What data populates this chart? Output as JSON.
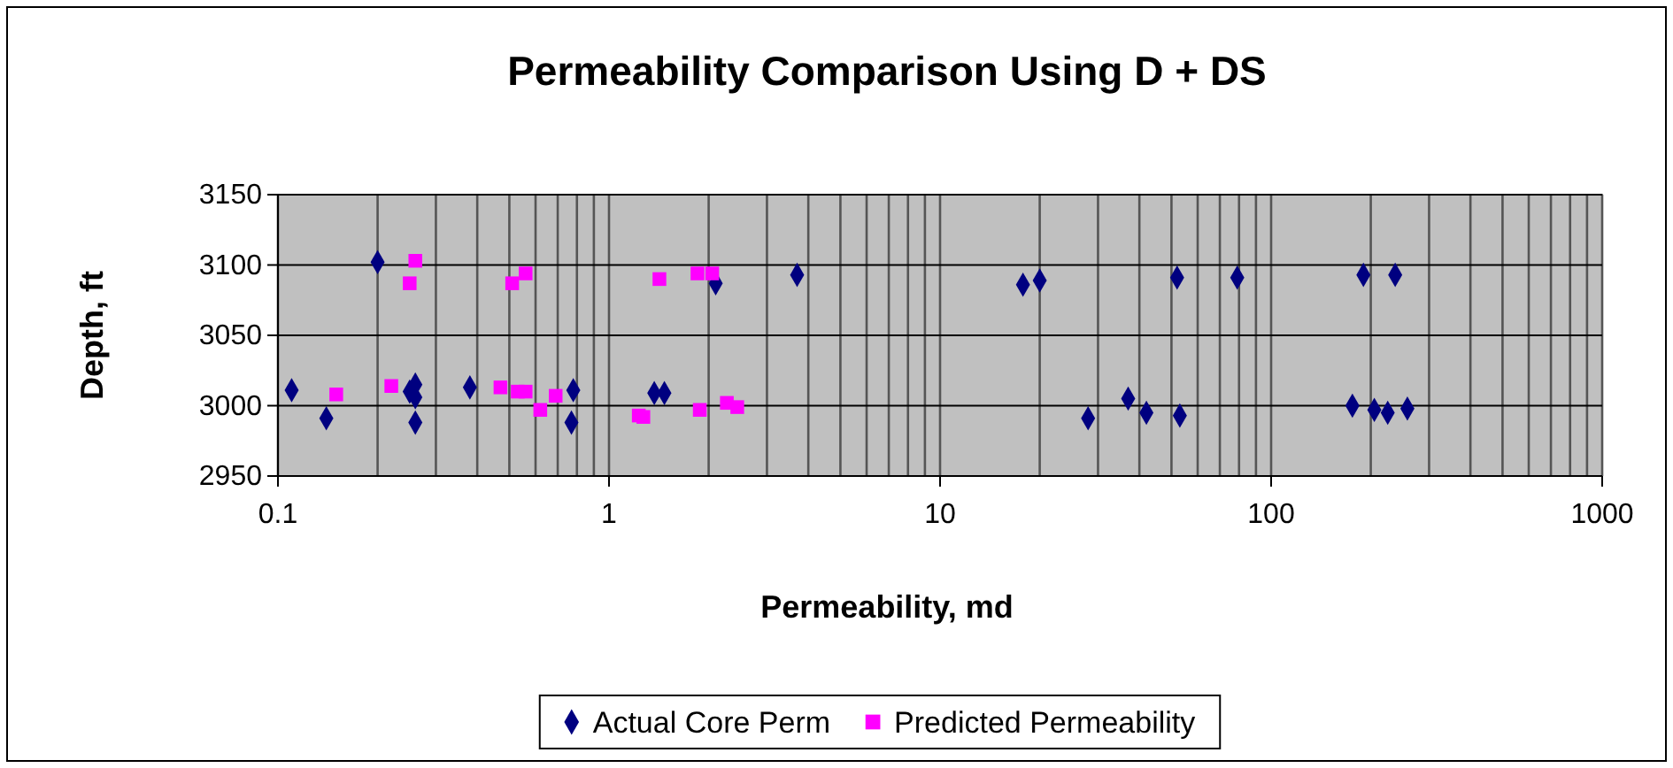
{
  "chart_data": {
    "type": "scatter",
    "title": "Permeability Comparison Using D + DS",
    "xlabel": "Permeability, md",
    "ylabel": "Depth, ft",
    "log": "x",
    "xlim": [
      0.1,
      1000
    ],
    "xticks": [
      0.1,
      1,
      10,
      100,
      1000
    ],
    "ylim": [
      2950,
      3150
    ],
    "yticks": [
      2950,
      3000,
      3050,
      3100,
      3150
    ],
    "grid": true,
    "legend": "bottom",
    "series": [
      {
        "name": "Actual Core Perm",
        "color": "#000080",
        "marker": "diamond",
        "x": [
          0.11,
          0.14,
          0.2,
          0.25,
          0.26,
          0.26,
          0.26,
          0.38,
          0.78,
          0.77,
          1.37,
          1.47,
          2.1,
          3.7,
          17.8,
          20,
          52,
          79,
          190,
          237,
          28,
          37,
          42,
          53,
          176,
          205,
          225,
          258
        ],
        "values": [
          3011,
          2991,
          3102,
          3010,
          3015,
          3006,
          2988,
          3013,
          3011,
          2988,
          3009,
          3009,
          3087,
          3093,
          3086,
          3089,
          3091,
          3091,
          3093,
          3093,
          2991,
          3005,
          2995,
          2993,
          3000,
          2997,
          2995,
          2998
        ]
      },
      {
        "name": "Predicted Permeability",
        "color": "#ff00ff",
        "marker": "square",
        "x": [
          0.15,
          0.22,
          0.25,
          0.26,
          0.47,
          0.51,
          0.53,
          0.56,
          0.56,
          0.62,
          0.69,
          1.23,
          1.27,
          1.42,
          1.85,
          1.88,
          2.05,
          2.27,
          2.44
        ],
        "values": [
          3008,
          3014,
          3087,
          3103,
          3013,
          3087,
          3010,
          3094,
          3010,
          2997,
          3007,
          2993,
          2992,
          3090,
          3094,
          2997,
          3094,
          3002,
          2999
        ]
      }
    ]
  }
}
